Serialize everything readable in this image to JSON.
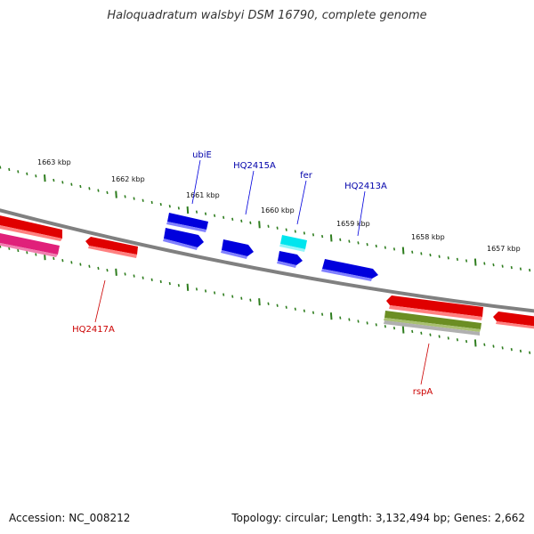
{
  "title": "Haloquadratum walsbyi DSM 16790, complete genome",
  "footer": {
    "accession": "Accession: NC_008212",
    "summary": "Topology: circular; Length: 3,132,494 bp; Genes: 2,662"
  },
  "scale_labels": [
    "1663 kbp",
    "1662 kbp",
    "1661 kbp",
    "1660 kbp",
    "1659 kbp",
    "1658 kbp",
    "1657 kbp"
  ],
  "gene_labels": {
    "ubiE": "ubiE",
    "HQ2415A": "HQ2415A",
    "fer": "fer",
    "HQ2413A": "HQ2413A",
    "HQ2417A": "HQ2417A",
    "rspA": "rspA"
  },
  "colors": {
    "backbone": "#808080",
    "tick": "#2e7d1e",
    "forward_gene": "#0000dd",
    "reverse_gene": "#e00000",
    "fer_gene": "#00e5ee",
    "pink_feature": "#e0207a",
    "olive_feature": "#6b8e23",
    "gray_feature": "#b0b0b0",
    "label_blue": "#0000aa",
    "label_red": "#cc0000"
  }
}
